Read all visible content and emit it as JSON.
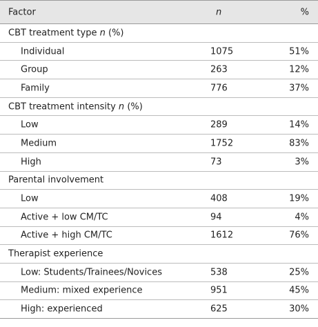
{
  "header": {
    "factor": "Factor",
    "n": "n",
    "percent": "%"
  },
  "sections": [
    {
      "title": "CBT treatment type",
      "title_italic": "n",
      "title_after": "(%)",
      "rows": [
        [
          "Individual",
          1075,
          "51%"
        ],
        [
          "Group",
          263,
          "12%"
        ],
        [
          "Family",
          776,
          "37%"
        ]
      ]
    },
    {
      "title": "CBT treatment intensity",
      "title_italic": "n",
      "title_after": "(%)",
      "rows": [
        [
          "Low",
          289,
          "14%"
        ],
        [
          "Medium",
          1752,
          "83%"
        ],
        [
          "High",
          73,
          "3%"
        ]
      ]
    },
    {
      "title": "Parental involvement",
      "rows": [
        [
          "Low",
          408,
          "19%"
        ],
        [
          "Active + low CM/TC",
          94,
          "4%"
        ],
        [
          "Active + high CM/TC",
          1612,
          "76%"
        ]
      ]
    },
    {
      "title": "Therapist experience",
      "rows": [
        [
          "Low: Students/Trainees/Novices",
          538,
          "25%"
        ],
        [
          "Medium: mixed experience",
          951,
          "45%"
        ],
        [
          "High: experienced",
          625,
          "30%"
        ]
      ]
    }
  ]
}
